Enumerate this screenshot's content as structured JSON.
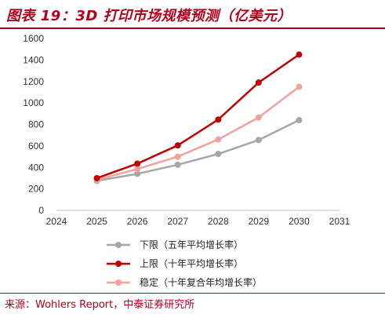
{
  "title": "图表 19：3D 打印市场规模预测（亿美元）",
  "source": "来源：Wohlers Report，中泰证券研究所",
  "colors": {
    "low": "#a6a6a6",
    "high": "#c00000",
    "mid": "#f4a09c",
    "accent": "#b3001b"
  },
  "chart_data": {
    "type": "line",
    "x": [
      2025,
      2026,
      2027,
      2028,
      2029,
      2030
    ],
    "xlim": [
      2024,
      2031
    ],
    "xticks": [
      "2024",
      "2025",
      "2026",
      "2027",
      "2028",
      "2029",
      "2030",
      "2031"
    ],
    "ylim": [
      0,
      1600
    ],
    "yticks": [
      "0",
      "200",
      "400",
      "600",
      "800",
      "1000",
      "1200",
      "1400",
      "1600"
    ],
    "grid": false,
    "legend": "bottom",
    "series": [
      {
        "name": "下限（五年平均增长率）",
        "color": "#a6a6a6",
        "values": [
          275,
          340,
          425,
          525,
          655,
          840
        ]
      },
      {
        "name": "上限（十年平均增长率）",
        "color": "#c00000",
        "values": [
          300,
          435,
          605,
          845,
          1190,
          1450
        ]
      },
      {
        "name": "稳定（十年复合年均增长率）",
        "color": "#f4a09c",
        "values": [
          285,
          385,
          500,
          660,
          865,
          1150
        ]
      }
    ]
  }
}
